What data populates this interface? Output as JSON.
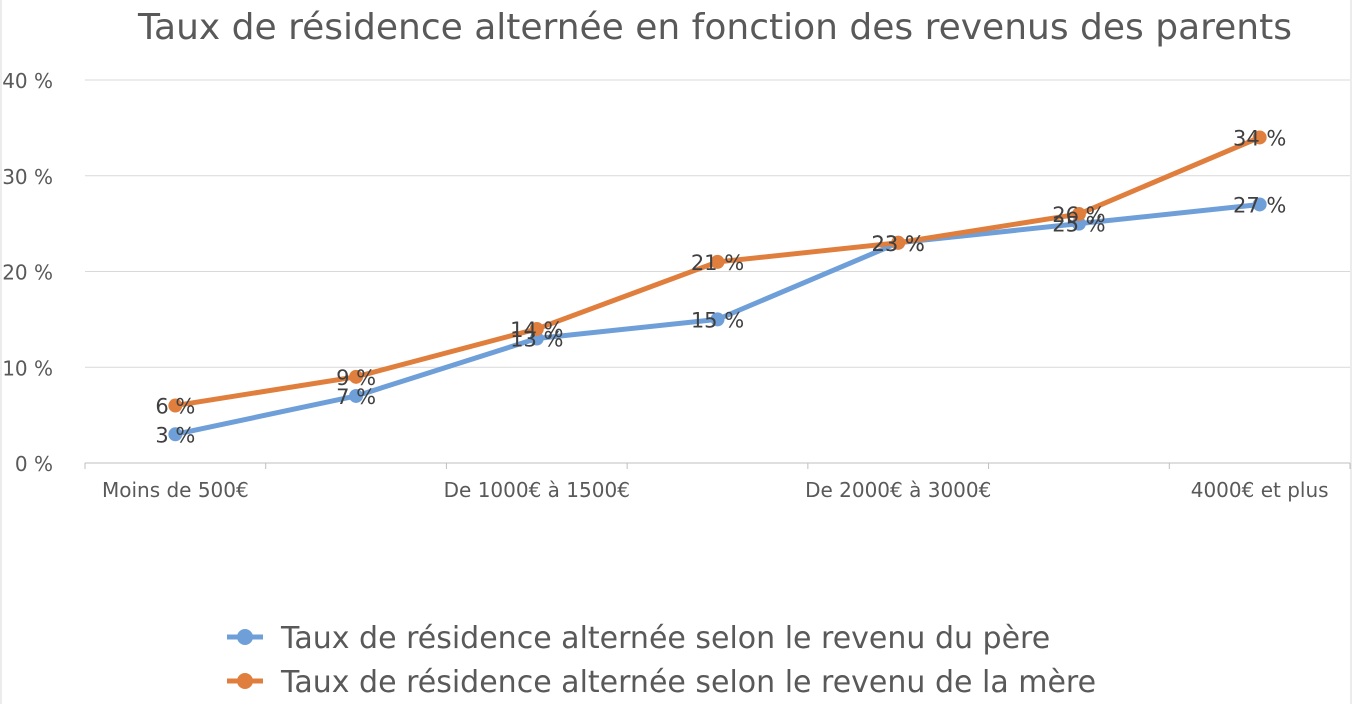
{
  "chart_data": {
    "type": "line",
    "title": "Taux de résidence alternée en fonction des revenus des parents",
    "categories": [
      "Moins de 500€",
      "",
      "De 1000€ à 1500€",
      "",
      "De 2000€ à 3000€",
      "",
      "4000€ et plus"
    ],
    "yticks": [
      "0 %",
      "10 %",
      "20 %",
      "30 %",
      "40 %"
    ],
    "ylim": [
      0,
      40
    ],
    "grid": true,
    "legend_position": "bottom",
    "series": [
      {
        "name": "Taux de résidence alternée selon le revenu du père",
        "color": "#6f9fd8",
        "values": [
          3,
          7,
          13,
          15,
          23,
          25,
          27
        ],
        "labels": [
          "3 %",
          "7 %",
          "13 %",
          "15 %",
          "23 %",
          "25 %",
          "27 %"
        ]
      },
      {
        "name": "Taux de résidence alternée selon le revenu de la mère",
        "color": "#e07f3d",
        "values": [
          6,
          9,
          14,
          21,
          23,
          26,
          34
        ],
        "labels": [
          "6 %",
          "9 %",
          "14 %",
          "21 %",
          "23 %",
          "26 %",
          "34 %"
        ]
      }
    ]
  }
}
